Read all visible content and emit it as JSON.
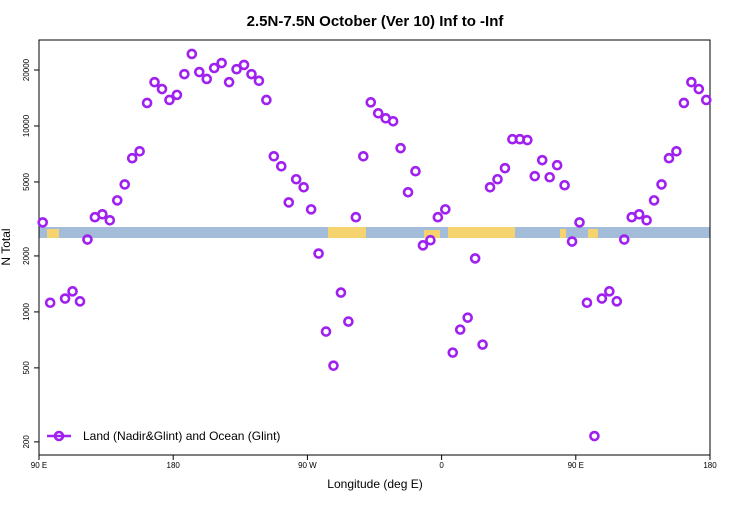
{
  "chart_data": {
    "type": "scatter",
    "title": "2.5N-7.5N October (Ver 10)   Inf to -Inf",
    "x_label": "Longitude (deg E)",
    "y_label": "N Total",
    "x": [
      92.5,
      97.5,
      107.5,
      112.5,
      117.5,
      122.5,
      127.5,
      132.5,
      137.5,
      142.5,
      147.5,
      152.5,
      157.5,
      162.5,
      167.5,
      172.5,
      177.5,
      182.5,
      187.5,
      192.5,
      197.5,
      202.5,
      207.5,
      212.5,
      217.5,
      222.5,
      227.5,
      232.5,
      237.5,
      242.5,
      247.5,
      252.5,
      257.5,
      262.5,
      267.5,
      272.5,
      277.5,
      282.5,
      287.5,
      292.5,
      297.5,
      302.5,
      307.5,
      312.5,
      317.5,
      322.5,
      327.5,
      332.5,
      337.5,
      342.5,
      347.5,
      352.5,
      357.5,
      362.5,
      367.5,
      372.5,
      377.5,
      382.5,
      387.5,
      392.5,
      397.5,
      402.5,
      407.5,
      412.5,
      417.5,
      422.5,
      427.5,
      432.5,
      437.5,
      442.5,
      447.5,
      452.5,
      457.5,
      462.5,
      467.5,
      472.5,
      477.5,
      482.5,
      487.5,
      492.5,
      497.5,
      502.5,
      507.5,
      512.5,
      517.5,
      522.5,
      527.5,
      532.5,
      537.5
    ],
    "series": [
      {
        "name": "Land (Nadir&Glint) and Ocean (Glint)",
        "color": "#a020f0",
        "values": [
          3030,
          1120,
          1180,
          1290,
          1140,
          2450,
          3230,
          3350,
          3110,
          3980,
          4850,
          6710,
          7310,
          13300,
          17200,
          15800,
          13800,
          14700,
          19000,
          24400,
          19500,
          17900,
          20500,
          21800,
          17200,
          20200,
          21300,
          19000,
          17500,
          13800,
          6870,
          6070,
          3880,
          5170,
          4680,
          3560,
          2060,
          784,
          514,
          1270,
          887,
          3230,
          6870,
          13400,
          11700,
          11000,
          10600,
          7600,
          4400,
          5710,
          2280,
          2430,
          3230,
          3560,
          604,
          803,
          931,
          1940,
          667,
          4680,
          5170,
          5930,
          8490,
          8490,
          8400,
          5370,
          6550,
          5300,
          6150,
          4800,
          2390,
          3030,
          1120,
          215,
          1180,
          1290,
          1140,
          2450,
          3230,
          3350,
          3110,
          3980,
          4850,
          6710,
          7310,
          13300,
          17200,
          15800,
          13800
        ]
      }
    ],
    "xlim": [
      90,
      540
    ],
    "xticks": [
      {
        "value": 90,
        "label": "90 E"
      },
      180,
      {
        "value": 270,
        "label": "90 W"
      },
      {
        "value": 360,
        "label": "0"
      },
      {
        "value": 450,
        "label": "90 E"
      },
      {
        "value": 540,
        "label": "180"
      }
    ],
    "ylim": [
      170,
      29000
    ],
    "yticks": [
      200,
      500,
      1000,
      2000,
      5000,
      10000,
      20000
    ],
    "yscale": "log",
    "legend": "lower left"
  }
}
